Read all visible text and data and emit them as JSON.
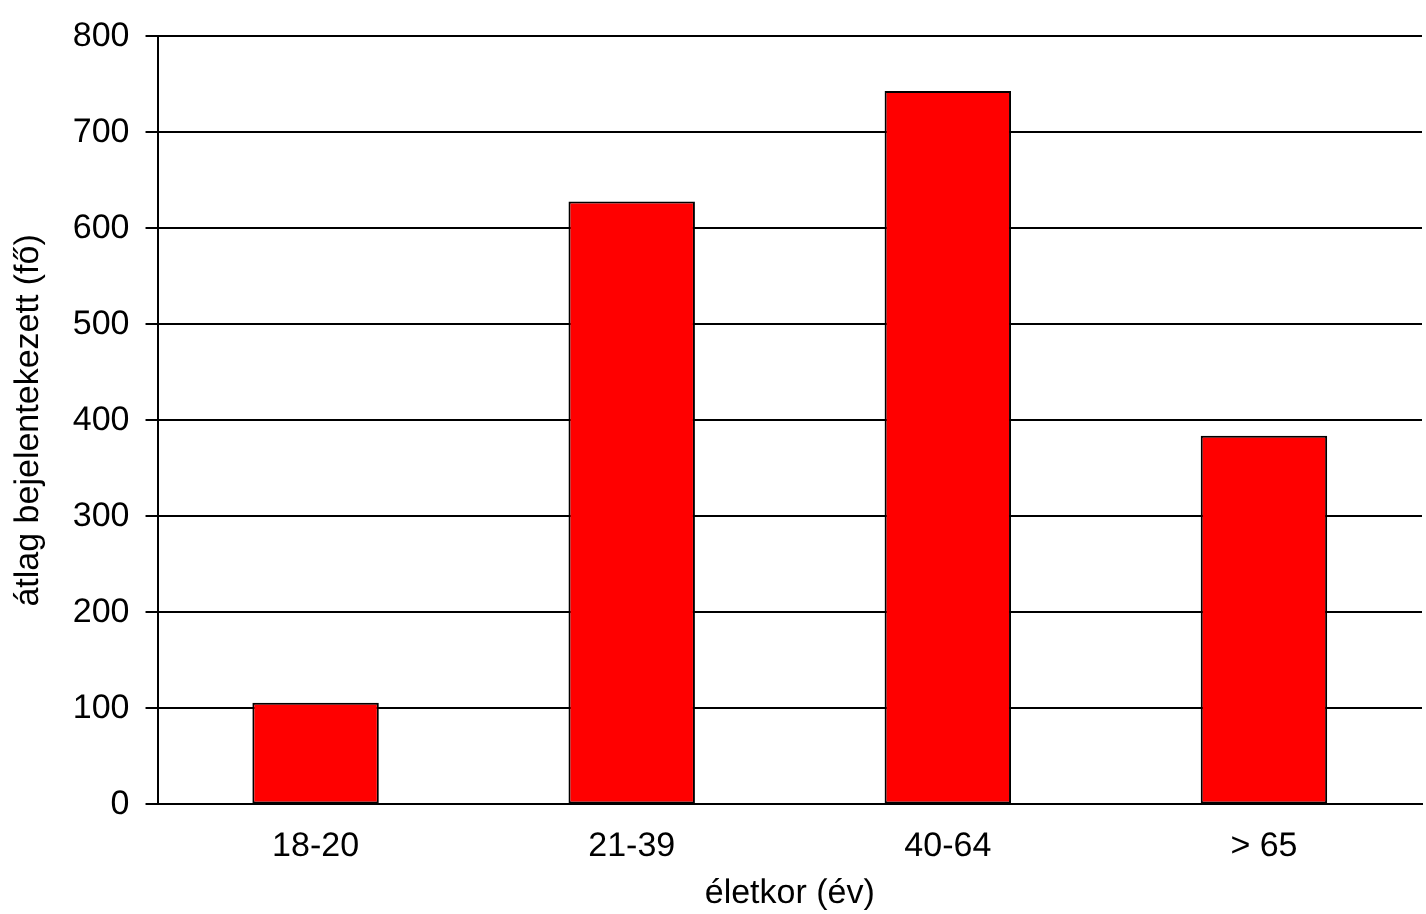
{
  "chart_data": {
    "type": "bar",
    "xlabel": "életkor (év)",
    "ylabel": "átlag bejelentekezett (fő)",
    "categories": [
      "18-20",
      "21-39",
      "40-64",
      "> 65"
    ],
    "values": [
      106,
      628,
      743,
      384
    ],
    "color": "#ff0000",
    "ylim": [
      0,
      800
    ],
    "yticks": [
      0,
      100,
      200,
      300,
      400,
      500,
      600,
      700,
      800
    ],
    "grid": "y",
    "legend": false
  }
}
